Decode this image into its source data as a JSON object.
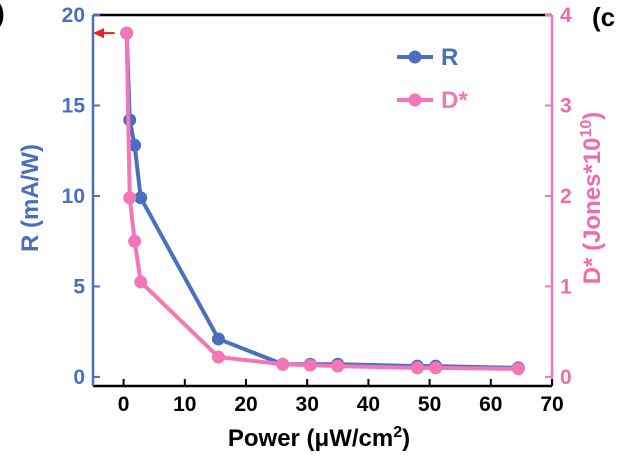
{
  "chart_data": {
    "type": "line",
    "xlabel": "Power (μW/cm",
    "xlabel_sup": "2",
    "xlabel_end": ")",
    "ylabel_left": "R (mA/W)",
    "ylabel_right": "D* (Jones*10",
    "ylabel_right_sup": "10",
    "ylabel_right_end": ")",
    "xlim": [
      -5,
      70
    ],
    "ylim_left": [
      -0.5,
      20
    ],
    "ylim_right": [
      -0.1,
      4
    ],
    "x_ticks": [
      0,
      10,
      20,
      30,
      40,
      50,
      60,
      70
    ],
    "y_left_ticks": [
      0,
      5,
      10,
      15,
      20
    ],
    "y_right_ticks": [
      0,
      1,
      2,
      3,
      4
    ],
    "legend_position": "top-right",
    "series": [
      {
        "name": "R",
        "axis": "left",
        "color": "#4a6fbf",
        "x": [
          0.5,
          1.0,
          1.8,
          2.8,
          15.5,
          26.0,
          30.5,
          35.0,
          48.0,
          51.0,
          64.5
        ],
        "y": [
          19.0,
          14.2,
          12.8,
          9.9,
          2.1,
          0.7,
          0.7,
          0.7,
          0.6,
          0.6,
          0.5
        ]
      },
      {
        "name": "D*",
        "axis": "right",
        "color": "#f576b8",
        "x": [
          0.5,
          1.0,
          1.8,
          2.8,
          15.5,
          26.0,
          30.5,
          35.0,
          48.0,
          51.0,
          64.5
        ],
        "y": [
          3.8,
          1.98,
          1.5,
          1.05,
          0.22,
          0.14,
          0.13,
          0.12,
          0.1,
          0.1,
          0.09
        ]
      }
    ],
    "arrow_color": "#e82020",
    "panel_mark": "(c",
    "panel_mark_left": ")"
  }
}
